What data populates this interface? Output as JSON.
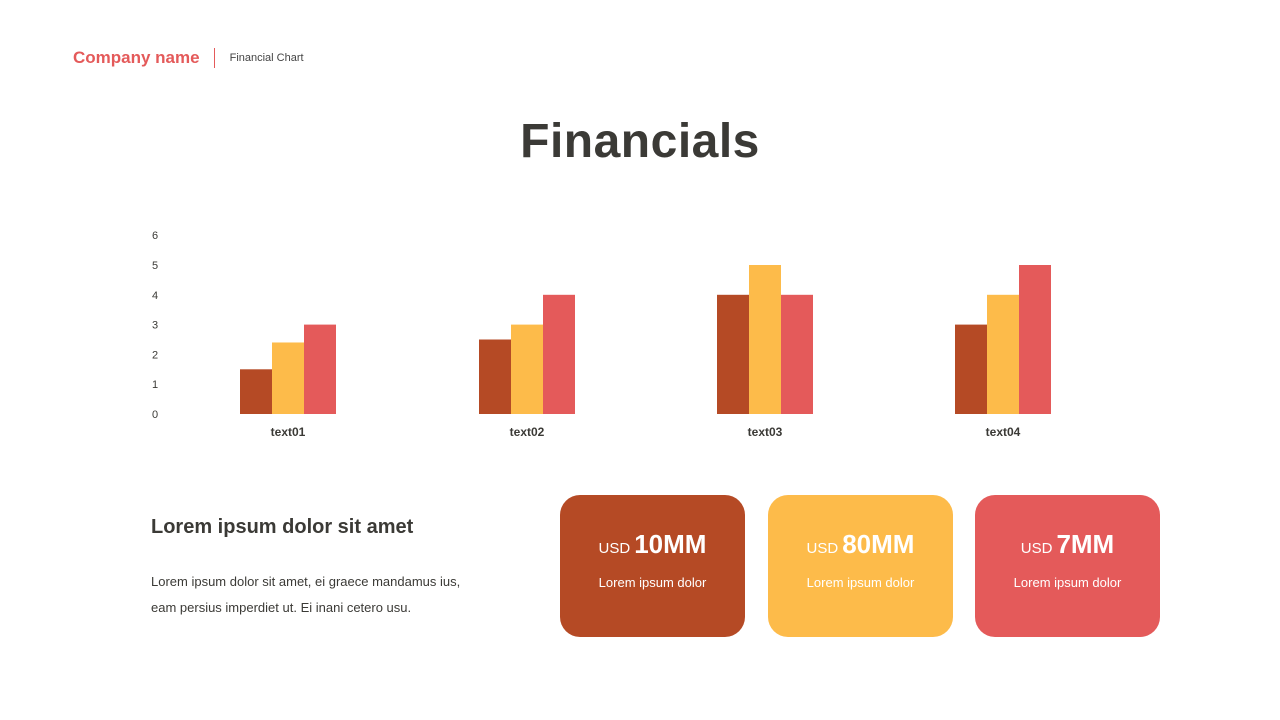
{
  "header": {
    "company": "Company name",
    "subtitle": "Financial Chart",
    "accent_color": "#e45a5a"
  },
  "title": "Financials",
  "chart_data": {
    "type": "bar",
    "categories": [
      "text01",
      "text02",
      "text03",
      "text04"
    ],
    "series": [
      {
        "values": [
          1.5,
          2.5,
          4,
          3
        ],
        "color": "#b54a25"
      },
      {
        "values": [
          2.4,
          3,
          5,
          4
        ],
        "color": "#fdbb4a"
      },
      {
        "values": [
          3,
          4,
          4,
          5
        ],
        "color": "#e45a5a"
      }
    ],
    "ylim": [
      0,
      6
    ],
    "yticks": [
      0,
      1,
      2,
      3,
      4,
      5,
      6
    ],
    "grid": false,
    "legend": "none",
    "xlabel": "",
    "ylabel": ""
  },
  "summary": {
    "heading": "Lorem ipsum dolor sit amet",
    "body": "Lorem ipsum dolor sit amet, ei graece mandamus ius, eam persius imperdiet ut. Ei inani cetero usu."
  },
  "cards": [
    {
      "prefix": "USD",
      "value": "10MM",
      "label": "Lorem ipsum dolor",
      "color": "#b54a25"
    },
    {
      "prefix": "USD",
      "value": "80MM",
      "label": "Lorem ipsum dolor",
      "color": "#fdbb4a"
    },
    {
      "prefix": "USD",
      "value": "7MM",
      "label": "Lorem ipsum dolor",
      "color": "#e45a5a"
    }
  ]
}
